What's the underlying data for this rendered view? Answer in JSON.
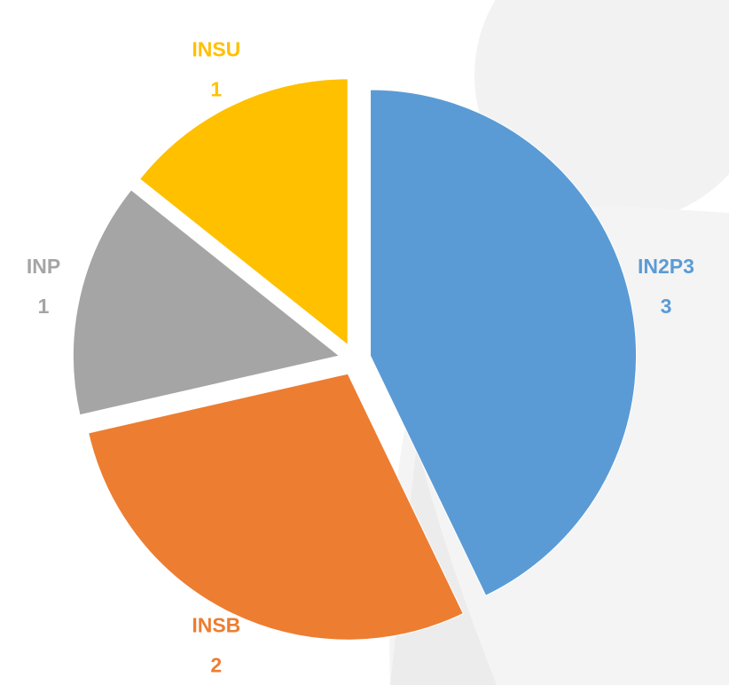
{
  "chart_data": {
    "type": "pie",
    "categories": [
      "IN2P3",
      "INSB",
      "INP",
      "INSU"
    ],
    "values": [
      3,
      2,
      1,
      1
    ],
    "colors": [
      "#5b9bd5",
      "#ed7d31",
      "#a5a5a5",
      "#ffc000"
    ]
  }
}
